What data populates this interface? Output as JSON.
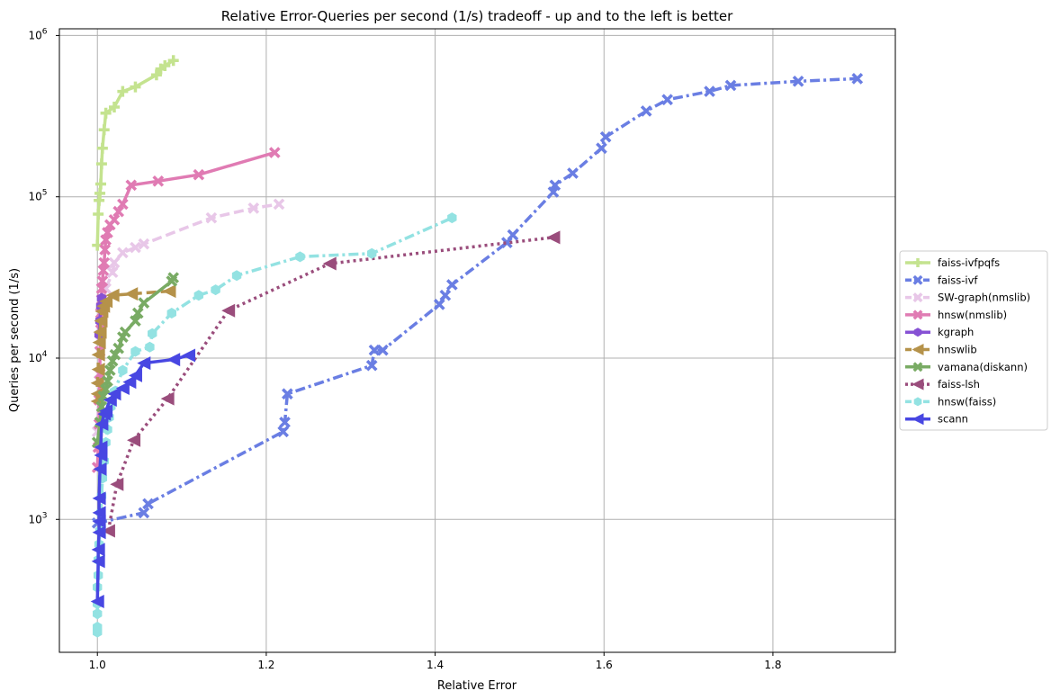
{
  "chart_data": {
    "type": "line",
    "title": "Relative Error-Queries per second (1/s) tradeoff - up and to the left is better",
    "xlabel": "Relative Error",
    "ylabel": "Queries per second (1/s)",
    "xscale": "linear",
    "yscale": "log",
    "xlim": [
      0.955,
      1.945
    ],
    "ylim": [
      150,
      1100000
    ],
    "x_ticks": [
      {
        "value": 1.0,
        "label": "1.0"
      },
      {
        "value": 1.2,
        "label": "1.2"
      },
      {
        "value": 1.4,
        "label": "1.4"
      },
      {
        "value": 1.6,
        "label": "1.6"
      },
      {
        "value": 1.8,
        "label": "1.8"
      }
    ],
    "y_ticks": [
      {
        "value": 1000,
        "base": "10",
        "exp": "3"
      },
      {
        "value": 10000,
        "base": "10",
        "exp": "4"
      },
      {
        "value": 100000,
        "base": "10",
        "exp": "5"
      },
      {
        "value": 1000000,
        "base": "10",
        "exp": "6"
      }
    ],
    "grid": true,
    "legend_position": "right-outside",
    "series": [
      {
        "name": "faiss-ivfpqfs",
        "color": "#c4e38f",
        "dash": "solid",
        "marker": "plus",
        "points": [
          [
            1.0,
            50000
          ],
          [
            1.001,
            78000
          ],
          [
            1.002,
            95000
          ],
          [
            1.003,
            105000
          ],
          [
            1.004,
            120000
          ],
          [
            1.005,
            160000
          ],
          [
            1.006,
            200000
          ],
          [
            1.008,
            260000
          ],
          [
            1.01,
            330000
          ],
          [
            1.02,
            360000
          ],
          [
            1.03,
            450000
          ],
          [
            1.045,
            480000
          ],
          [
            1.07,
            570000
          ],
          [
            1.075,
            620000
          ],
          [
            1.08,
            650000
          ],
          [
            1.09,
            700000
          ]
        ]
      },
      {
        "name": "faiss-ivf",
        "color": "#6a7ee3",
        "dash": "dashdot",
        "marker": "x",
        "points": [
          [
            1.0,
            950
          ],
          [
            1.055,
            1100
          ],
          [
            1.06,
            1250
          ],
          [
            1.22,
            3500
          ],
          [
            1.222,
            4000
          ],
          [
            1.225,
            6000
          ],
          [
            1.325,
            9000
          ],
          [
            1.328,
            11200
          ],
          [
            1.338,
            11200
          ],
          [
            1.405,
            21500
          ],
          [
            1.412,
            24500
          ],
          [
            1.42,
            28500
          ],
          [
            1.485,
            52000
          ],
          [
            1.492,
            58000
          ],
          [
            1.54,
            107000
          ],
          [
            1.542,
            118000
          ],
          [
            1.563,
            140000
          ],
          [
            1.597,
            200000
          ],
          [
            1.602,
            235000
          ],
          [
            1.65,
            340000
          ],
          [
            1.675,
            400000
          ],
          [
            1.725,
            450000
          ],
          [
            1.75,
            490000
          ],
          [
            1.83,
            520000
          ],
          [
            1.9,
            540000
          ]
        ]
      },
      {
        "name": "SW-graph(nmslib)",
        "color": "#e8c7e8",
        "dash": "dashed",
        "marker": "x",
        "points": [
          [
            1.0,
            3500
          ],
          [
            1.002,
            8000
          ],
          [
            1.004,
            14000
          ],
          [
            1.006,
            20000
          ],
          [
            1.01,
            27000
          ],
          [
            1.018,
            34000
          ],
          [
            1.02,
            39000
          ],
          [
            1.03,
            45000
          ],
          [
            1.045,
            48500
          ],
          [
            1.055,
            51000
          ],
          [
            1.135,
            74000
          ],
          [
            1.185,
            85000
          ],
          [
            1.215,
            90000
          ]
        ]
      },
      {
        "name": "hnsw(nmslib)",
        "color": "#e07bb3",
        "dash": "solid",
        "marker": "x",
        "points": [
          [
            1.0,
            2100
          ],
          [
            1.001,
            2800
          ],
          [
            1.002,
            3900
          ],
          [
            1.002,
            5500
          ],
          [
            1.003,
            8000
          ],
          [
            1.003,
            11000
          ],
          [
            1.004,
            15000
          ],
          [
            1.004,
            19000
          ],
          [
            1.005,
            23000
          ],
          [
            1.005,
            27000
          ],
          [
            1.006,
            30000
          ],
          [
            1.007,
            35000
          ],
          [
            1.008,
            39000
          ],
          [
            1.009,
            47000
          ],
          [
            1.01,
            54000
          ],
          [
            1.012,
            60000
          ],
          [
            1.015,
            67000
          ],
          [
            1.02,
            72000
          ],
          [
            1.025,
            81000
          ],
          [
            1.03,
            90000
          ],
          [
            1.04,
            118000
          ],
          [
            1.072,
            125000
          ],
          [
            1.12,
            137000
          ],
          [
            1.21,
            188000
          ]
        ]
      },
      {
        "name": "kgraph",
        "color": "#8651d4",
        "dash": "solid",
        "marker": "hexagon",
        "points": [
          [
            1.002,
            14000
          ],
          [
            1.003,
            17000
          ],
          [
            1.004,
            21000
          ],
          [
            1.005,
            23500
          ]
        ]
      },
      {
        "name": "hnswlib",
        "color": "#b5924a",
        "dash": "dashed",
        "marker": "triangle-left",
        "points": [
          [
            1.0,
            5400
          ],
          [
            1.0,
            6000
          ],
          [
            1.0,
            7000
          ],
          [
            1.001,
            8500
          ],
          [
            1.001,
            10500
          ],
          [
            1.002,
            12500
          ],
          [
            1.003,
            14500
          ],
          [
            1.004,
            17000
          ],
          [
            1.005,
            19500
          ],
          [
            1.007,
            21000
          ],
          [
            1.01,
            22500
          ],
          [
            1.018,
            24500
          ],
          [
            1.04,
            25000
          ],
          [
            1.085,
            26000
          ]
        ]
      },
      {
        "name": "vamana(diskann)",
        "color": "#79ab64",
        "dash": "solid",
        "marker": "x",
        "points": [
          [
            1.0,
            3000
          ],
          [
            1.003,
            4000
          ],
          [
            1.005,
            5000
          ],
          [
            1.007,
            5800
          ],
          [
            1.01,
            6400
          ],
          [
            1.012,
            7200
          ],
          [
            1.015,
            8400
          ],
          [
            1.018,
            9600
          ],
          [
            1.021,
            10500
          ],
          [
            1.025,
            11500
          ],
          [
            1.03,
            13500
          ],
          [
            1.033,
            14500
          ],
          [
            1.045,
            17000
          ],
          [
            1.048,
            19000
          ],
          [
            1.055,
            22000
          ],
          [
            1.088,
            30000
          ],
          [
            1.09,
            31500
          ]
        ]
      },
      {
        "name": "faiss-lsh",
        "color": "#9a4d7c",
        "dash": "dotted",
        "marker": "triangle-left",
        "points": [
          [
            1.013,
            850
          ],
          [
            1.023,
            1650
          ],
          [
            1.043,
            3100
          ],
          [
            1.083,
            5600
          ],
          [
            1.155,
            19700
          ],
          [
            1.275,
            38500
          ],
          [
            1.54,
            56000
          ]
        ]
      },
      {
        "name": "hnsw(faiss)",
        "color": "#93e2e2",
        "dash": "dashdot",
        "marker": "hexagon",
        "points": [
          [
            1.0,
            200
          ],
          [
            1.0,
            215
          ],
          [
            1.0,
            260
          ],
          [
            1.0,
            300
          ],
          [
            1.0,
            380
          ],
          [
            1.001,
            450
          ],
          [
            1.001,
            560
          ],
          [
            1.002,
            700
          ],
          [
            1.003,
            850
          ],
          [
            1.004,
            1100
          ],
          [
            1.005,
            1400
          ],
          [
            1.006,
            1800
          ],
          [
            1.008,
            2300
          ],
          [
            1.01,
            3000
          ],
          [
            1.012,
            3600
          ],
          [
            1.014,
            4300
          ],
          [
            1.016,
            5000
          ],
          [
            1.02,
            6200
          ],
          [
            1.03,
            8400
          ],
          [
            1.045,
            11000
          ],
          [
            1.062,
            11700
          ],
          [
            1.065,
            14200
          ],
          [
            1.088,
            19000
          ],
          [
            1.12,
            24500
          ],
          [
            1.14,
            26500
          ],
          [
            1.165,
            32500
          ],
          [
            1.24,
            42500
          ],
          [
            1.325,
            44500
          ],
          [
            1.42,
            74000
          ]
        ]
      },
      {
        "name": "scann",
        "color": "#4847e2",
        "dash": "solid",
        "marker": "triangle-left",
        "points": [
          [
            1.0,
            310
          ],
          [
            1.001,
            550
          ],
          [
            1.001,
            650
          ],
          [
            1.002,
            830
          ],
          [
            1.002,
            970
          ],
          [
            1.002,
            1100
          ],
          [
            1.002,
            1350
          ],
          [
            1.003,
            2050
          ],
          [
            1.004,
            2500
          ],
          [
            1.004,
            2800
          ],
          [
            1.005,
            3900
          ],
          [
            1.008,
            4500
          ],
          [
            1.01,
            4700
          ],
          [
            1.015,
            5500
          ],
          [
            1.02,
            6000
          ],
          [
            1.03,
            6500
          ],
          [
            1.038,
            7100
          ],
          [
            1.045,
            7800
          ],
          [
            1.055,
            9300
          ],
          [
            1.09,
            9800
          ],
          [
            1.108,
            10400
          ]
        ]
      }
    ]
  }
}
